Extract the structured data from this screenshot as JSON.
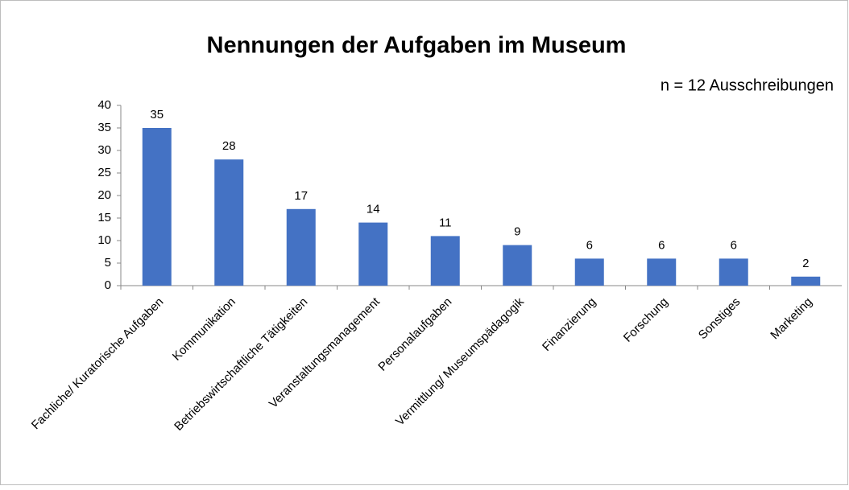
{
  "chart_data": {
    "type": "bar",
    "title": "Nennungen der Aufgaben im Museum",
    "subtitle": "n = 12 Ausschreibungen",
    "categories": [
      "Fachliche/ Kuratorische Aufgaben",
      "Kommunikation",
      "Betriebswirtschaftliche Tätigkeiten",
      "Veranstaltungsmanagement",
      "Personalaufgaben",
      "Vermittlung/ Museumspädagogik",
      "Finanzierung",
      "Forschung",
      "Sonstiges",
      "Marketing"
    ],
    "values": [
      35,
      28,
      17,
      14,
      11,
      9,
      6,
      6,
      6,
      2
    ],
    "color": "#4472c4",
    "ylim": [
      0,
      40
    ],
    "yticks": [
      0,
      5,
      10,
      15,
      20,
      25,
      30,
      35,
      40
    ],
    "grid": false
  }
}
